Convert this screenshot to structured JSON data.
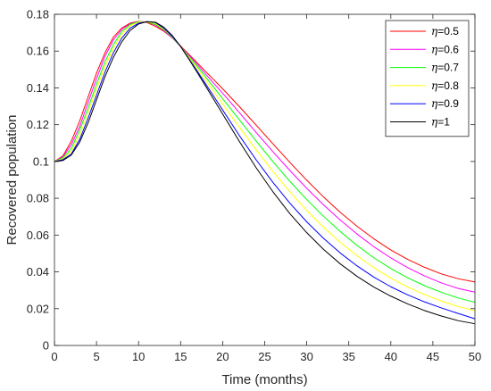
{
  "chart_data": {
    "type": "line",
    "title": "",
    "xlabel": "Time (months)",
    "ylabel": "Recovered population",
    "xlim": [
      0,
      50
    ],
    "ylim": [
      0,
      0.18
    ],
    "xticks": [
      0,
      5,
      10,
      15,
      20,
      25,
      30,
      35,
      40,
      45,
      50
    ],
    "yticks": [
      0,
      0.02,
      0.04,
      0.06,
      0.08,
      0.1,
      0.12,
      0.14,
      0.16,
      0.18
    ],
    "xtick_labels": [
      "0",
      "5",
      "10",
      "15",
      "20",
      "25",
      "30",
      "35",
      "40",
      "45",
      "50"
    ],
    "ytick_labels": [
      "0",
      "0.02",
      "0.04",
      "0.06",
      "0.08",
      "0.1",
      "0.12",
      "0.14",
      "0.16",
      "0.18"
    ],
    "grid": false,
    "legend_position": "top-right",
    "x": [
      0,
      1,
      2,
      3,
      4,
      5,
      6,
      7,
      8,
      9,
      10,
      11,
      12,
      13,
      14,
      15,
      16,
      17,
      18,
      19,
      20,
      22,
      24,
      26,
      28,
      30,
      32,
      34,
      36,
      38,
      40,
      42,
      44,
      46,
      48,
      50
    ],
    "series": [
      {
        "name": "η=0.5",
        "label_prefix": "η",
        "label_value": "=0.5",
        "color": "#ff0000",
        "values": [
          0.1,
          0.103,
          0.111,
          0.122,
          0.135,
          0.148,
          0.159,
          0.1675,
          0.1725,
          0.1752,
          0.1762,
          0.1755,
          0.1735,
          0.1708,
          0.1672,
          0.1628,
          0.1582,
          0.1535,
          0.1488,
          0.1442,
          0.1395,
          0.1298,
          0.1197,
          0.1095,
          0.0995,
          0.0898,
          0.0807,
          0.0723,
          0.0647,
          0.0579,
          0.0519,
          0.0468,
          0.0425,
          0.0389,
          0.0363,
          0.0345
        ]
      },
      {
        "name": "η=0.6",
        "label_prefix": "η",
        "label_value": "=0.6",
        "color": "#ff00ff",
        "values": [
          0.1,
          0.1025,
          0.109,
          0.119,
          0.132,
          0.145,
          0.157,
          0.166,
          0.1717,
          0.1748,
          0.1761,
          0.1758,
          0.1742,
          0.1712,
          0.1672,
          0.1625,
          0.1577,
          0.1526,
          0.1474,
          0.1422,
          0.1371,
          0.1265,
          0.1157,
          0.1052,
          0.0951,
          0.0854,
          0.0764,
          0.0681,
          0.0605,
          0.0536,
          0.0476,
          0.0423,
          0.0378,
          0.034,
          0.031,
          0.029
        ]
      },
      {
        "name": "η=0.7",
        "label_prefix": "η",
        "label_value": "=0.7",
        "color": "#00ff00",
        "values": [
          0.1,
          0.102,
          0.107,
          0.117,
          0.129,
          0.142,
          0.154,
          0.1635,
          0.1705,
          0.1745,
          0.176,
          0.1758,
          0.1745,
          0.1716,
          0.1675,
          0.1625,
          0.157,
          0.1515,
          0.1458,
          0.14,
          0.1342,
          0.1226,
          0.111,
          0.0998,
          0.0892,
          0.0793,
          0.0702,
          0.0619,
          0.0543,
          0.0476,
          0.0418,
          0.0368,
          0.0325,
          0.0289,
          0.0258,
          0.0235
        ]
      },
      {
        "name": "η=0.8",
        "label_prefix": "η",
        "label_value": "=0.8",
        "color": "#ffff00",
        "values": [
          0.1,
          0.1015,
          0.1055,
          0.1145,
          0.1265,
          0.1395,
          0.1515,
          0.1615,
          0.169,
          0.1738,
          0.1758,
          0.1759,
          0.175,
          0.172,
          0.1678,
          0.1625,
          0.1565,
          0.1503,
          0.144,
          0.1376,
          0.1312,
          0.1186,
          0.1063,
          0.0945,
          0.0835,
          0.0734,
          0.0643,
          0.056,
          0.0487,
          0.0422,
          0.0366,
          0.0318,
          0.0277,
          0.0242,
          0.0212,
          0.0188
        ]
      },
      {
        "name": "η=0.9",
        "label_prefix": "η",
        "label_value": "=0.9",
        "color": "#0000ff",
        "values": [
          0.1,
          0.101,
          0.104,
          0.112,
          0.1235,
          0.136,
          0.1485,
          0.159,
          0.167,
          0.1725,
          0.1752,
          0.176,
          0.1755,
          0.1725,
          0.168,
          0.1625,
          0.1558,
          0.149,
          0.142,
          0.135,
          0.128,
          0.114,
          0.1008,
          0.0885,
          0.0773,
          0.0672,
          0.0582,
          0.0502,
          0.0432,
          0.0371,
          0.0319,
          0.0275,
          0.0237,
          0.0204,
          0.0174,
          0.0145
        ]
      },
      {
        "name": "η=1",
        "label_prefix": "η",
        "label_value": "=1",
        "color": "#000000",
        "values": [
          0.1,
          0.1005,
          0.1035,
          0.1105,
          0.121,
          0.1335,
          0.146,
          0.1565,
          0.165,
          0.1712,
          0.1747,
          0.176,
          0.1757,
          0.173,
          0.1685,
          0.1625,
          0.1555,
          0.1482,
          0.1408,
          0.1333,
          0.1258,
          0.1108,
          0.0965,
          0.0834,
          0.0716,
          0.0613,
          0.0522,
          0.0443,
          0.0375,
          0.0317,
          0.0268,
          0.0226,
          0.019,
          0.016,
          0.0135,
          0.0118
        ]
      }
    ]
  }
}
